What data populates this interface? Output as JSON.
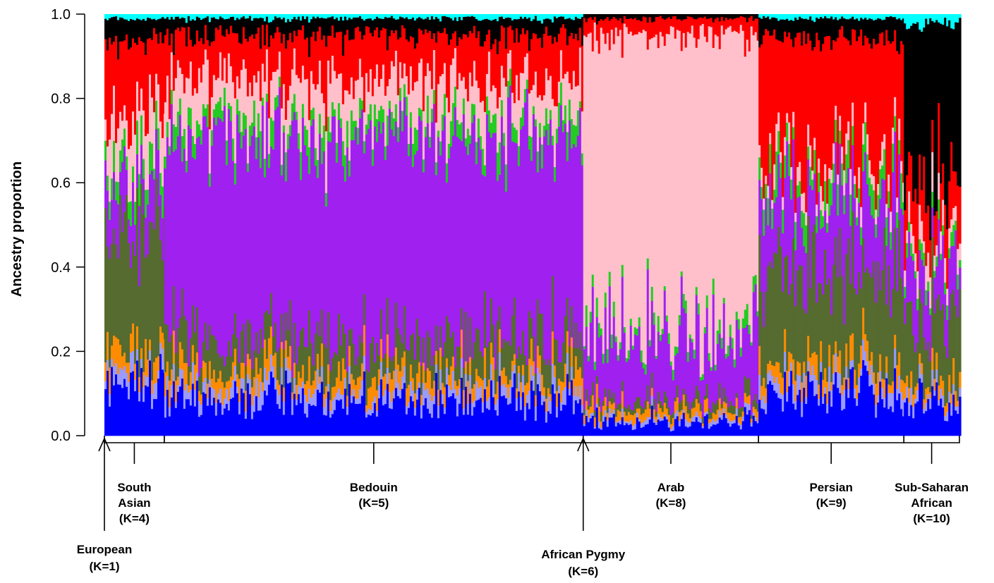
{
  "chart_data": {
    "type": "stacked-bar",
    "ylabel": "Ancestry proportion",
    "ylim": [
      0,
      1
    ],
    "yticks": [
      "0.0",
      "0.2",
      "0.4",
      "0.6",
      "0.8",
      "1.0"
    ],
    "grid": false,
    "legend": "none",
    "component_colors": [
      "#0000ff",
      "#9a9aff",
      "#ff8c00",
      "#556b2f",
      "#a020f0",
      "#22cc22",
      "#ffc0cb",
      "#ff0000",
      "#000000",
      "#00ffff"
    ],
    "groups": [
      {
        "name": "European",
        "label_lines": [
          "European",
          "(K=1)"
        ],
        "start": 0.0,
        "end": 0.0,
        "marker": "arrow",
        "mean": [
          0.22,
          0.05,
          0.05,
          0.2,
          0.02,
          0.04,
          0.06,
          0.3,
          0.05,
          0.01
        ]
      },
      {
        "name": "South Asian",
        "label_lines": [
          "South",
          "Asian",
          "(K=4)"
        ],
        "start": 0.0,
        "end": 0.07,
        "marker": "bracket",
        "mean": [
          0.12,
          0.03,
          0.05,
          0.3,
          0.12,
          0.05,
          0.1,
          0.17,
          0.05,
          0.01
        ]
      },
      {
        "name": "Bedouin",
        "label_lines": [
          "Bedouin",
          "(K=5)"
        ],
        "start": 0.07,
        "end": 0.56,
        "marker": "bracket",
        "mean": [
          0.08,
          0.03,
          0.04,
          0.08,
          0.48,
          0.04,
          0.1,
          0.1,
          0.04,
          0.01
        ]
      },
      {
        "name": "African Pygmy",
        "label_lines": [
          "African Pygmy",
          "(K=6)"
        ],
        "start": 0.56,
        "end": 0.56,
        "marker": "arrow",
        "mean": [
          0.0,
          0.0,
          0.0,
          0.0,
          0.0,
          0.02,
          0.95,
          0.02,
          0.0,
          0.01
        ]
      },
      {
        "name": "Arab",
        "label_lines": [
          "Arab",
          "(K=8)"
        ],
        "start": 0.56,
        "end": 0.765,
        "marker": "bracket",
        "mean": [
          0.03,
          0.01,
          0.02,
          0.02,
          0.15,
          0.02,
          0.7,
          0.04,
          0.01,
          0.0
        ]
      },
      {
        "name": "Persian",
        "label_lines": [
          "Persian",
          "(K=9)"
        ],
        "start": 0.765,
        "end": 0.935,
        "marker": "bracket",
        "mean": [
          0.1,
          0.03,
          0.04,
          0.2,
          0.18,
          0.05,
          0.04,
          0.3,
          0.05,
          0.01
        ]
      },
      {
        "name": "Sub-Saharan African",
        "label_lines": [
          "Sub-Saharan",
          "African",
          "(K=10)"
        ],
        "start": 0.935,
        "end": 1.0,
        "marker": "bracket",
        "mean": [
          0.08,
          0.02,
          0.03,
          0.15,
          0.12,
          0.03,
          0.05,
          0.12,
          0.38,
          0.02
        ]
      }
    ]
  }
}
